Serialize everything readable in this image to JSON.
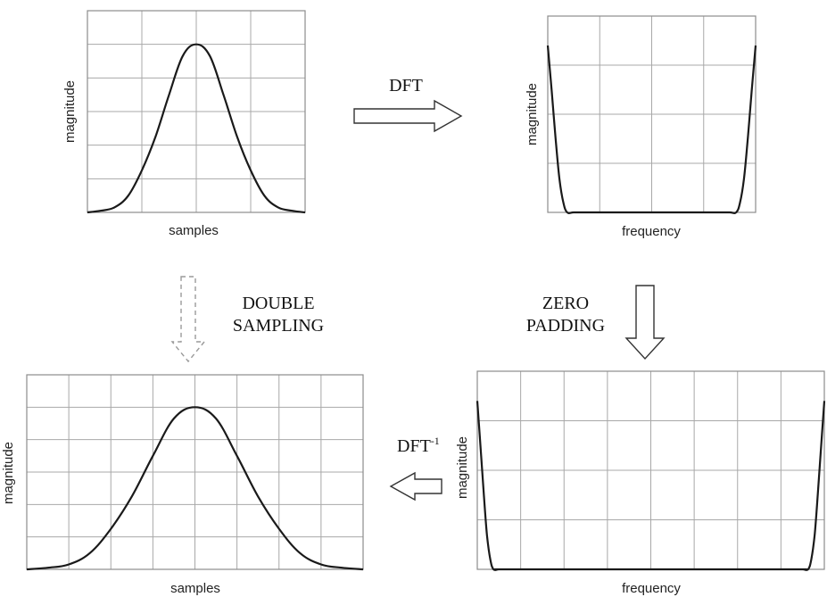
{
  "chart_data": [
    {
      "type": "line",
      "panel": "top-left",
      "title": "",
      "xlabel": "samples",
      "ylabel": "magnitude",
      "grid": true,
      "xlim": [
        0,
        16
      ],
      "ylim": [
        0,
        1.2
      ],
      "series": [
        {
          "x": [
            0,
            1,
            2,
            3,
            4,
            5,
            6,
            7,
            8,
            9,
            10,
            11,
            12,
            13,
            14,
            15,
            16
          ],
          "values": [
            0.0,
            0.01,
            0.03,
            0.1,
            0.25,
            0.45,
            0.7,
            0.93,
            1.0,
            0.93,
            0.7,
            0.45,
            0.25,
            0.1,
            0.03,
            0.01,
            0.0
          ]
        }
      ]
    },
    {
      "type": "line",
      "panel": "top-right",
      "title": "",
      "xlabel": "frequency",
      "ylabel": "magnitude",
      "grid": true,
      "xlim": [
        0,
        16
      ],
      "ylim": [
        0,
        1.0
      ],
      "series": [
        {
          "x": [
            0,
            0.3,
            0.6,
            0.9,
            1.2,
            1.5,
            2.0,
            3.0,
            8.0,
            13.0,
            14.0,
            14.5,
            14.8,
            15.1,
            15.4,
            15.7,
            16.0
          ],
          "values": [
            0.85,
            0.62,
            0.38,
            0.17,
            0.05,
            0.0,
            0.0,
            0.0,
            0.0,
            0.0,
            0.0,
            0.0,
            0.05,
            0.17,
            0.38,
            0.62,
            0.85
          ]
        }
      ]
    },
    {
      "type": "line",
      "panel": "bottom-right",
      "title": "",
      "xlabel": "frequency",
      "ylabel": "magnitude",
      "grid": true,
      "xlim": [
        0,
        32
      ],
      "ylim": [
        0,
        1.0
      ],
      "series": [
        {
          "x": [
            0,
            0.3,
            0.6,
            0.9,
            1.2,
            1.5,
            2.0,
            3.0,
            16.0,
            29.0,
            30.0,
            30.5,
            30.8,
            31.1,
            31.4,
            31.7,
            32.0
          ],
          "values": [
            0.85,
            0.62,
            0.38,
            0.17,
            0.05,
            0.0,
            0.0,
            0.0,
            0.0,
            0.0,
            0.0,
            0.0,
            0.05,
            0.17,
            0.38,
            0.62,
            0.85
          ]
        }
      ]
    },
    {
      "type": "line",
      "panel": "bottom-left",
      "title": "",
      "xlabel": "samples",
      "ylabel": "magnitude",
      "grid": true,
      "xlim": [
        0,
        32
      ],
      "ylim": [
        0,
        1.2
      ],
      "series": [
        {
          "x": [
            0,
            2,
            4,
            6,
            8,
            10,
            12,
            14,
            16,
            18,
            20,
            22,
            24,
            26,
            28,
            30,
            32
          ],
          "values": [
            0.0,
            0.01,
            0.03,
            0.1,
            0.25,
            0.45,
            0.7,
            0.93,
            1.0,
            0.93,
            0.7,
            0.45,
            0.25,
            0.1,
            0.03,
            0.01,
            0.0
          ]
        }
      ]
    }
  ],
  "captions": {
    "dft": "DFT",
    "dft_inverse": "DFT",
    "dft_inverse_sup": "-1",
    "double_line1": "DOUBLE",
    "double_line2": "SAMPLING",
    "zero_line1": "ZERO",
    "zero_line2": "PADDING"
  },
  "arrows": {
    "dft": "right",
    "zero_padding": "down",
    "dft_inverse": "left",
    "double_sampling": "down-dashed"
  }
}
